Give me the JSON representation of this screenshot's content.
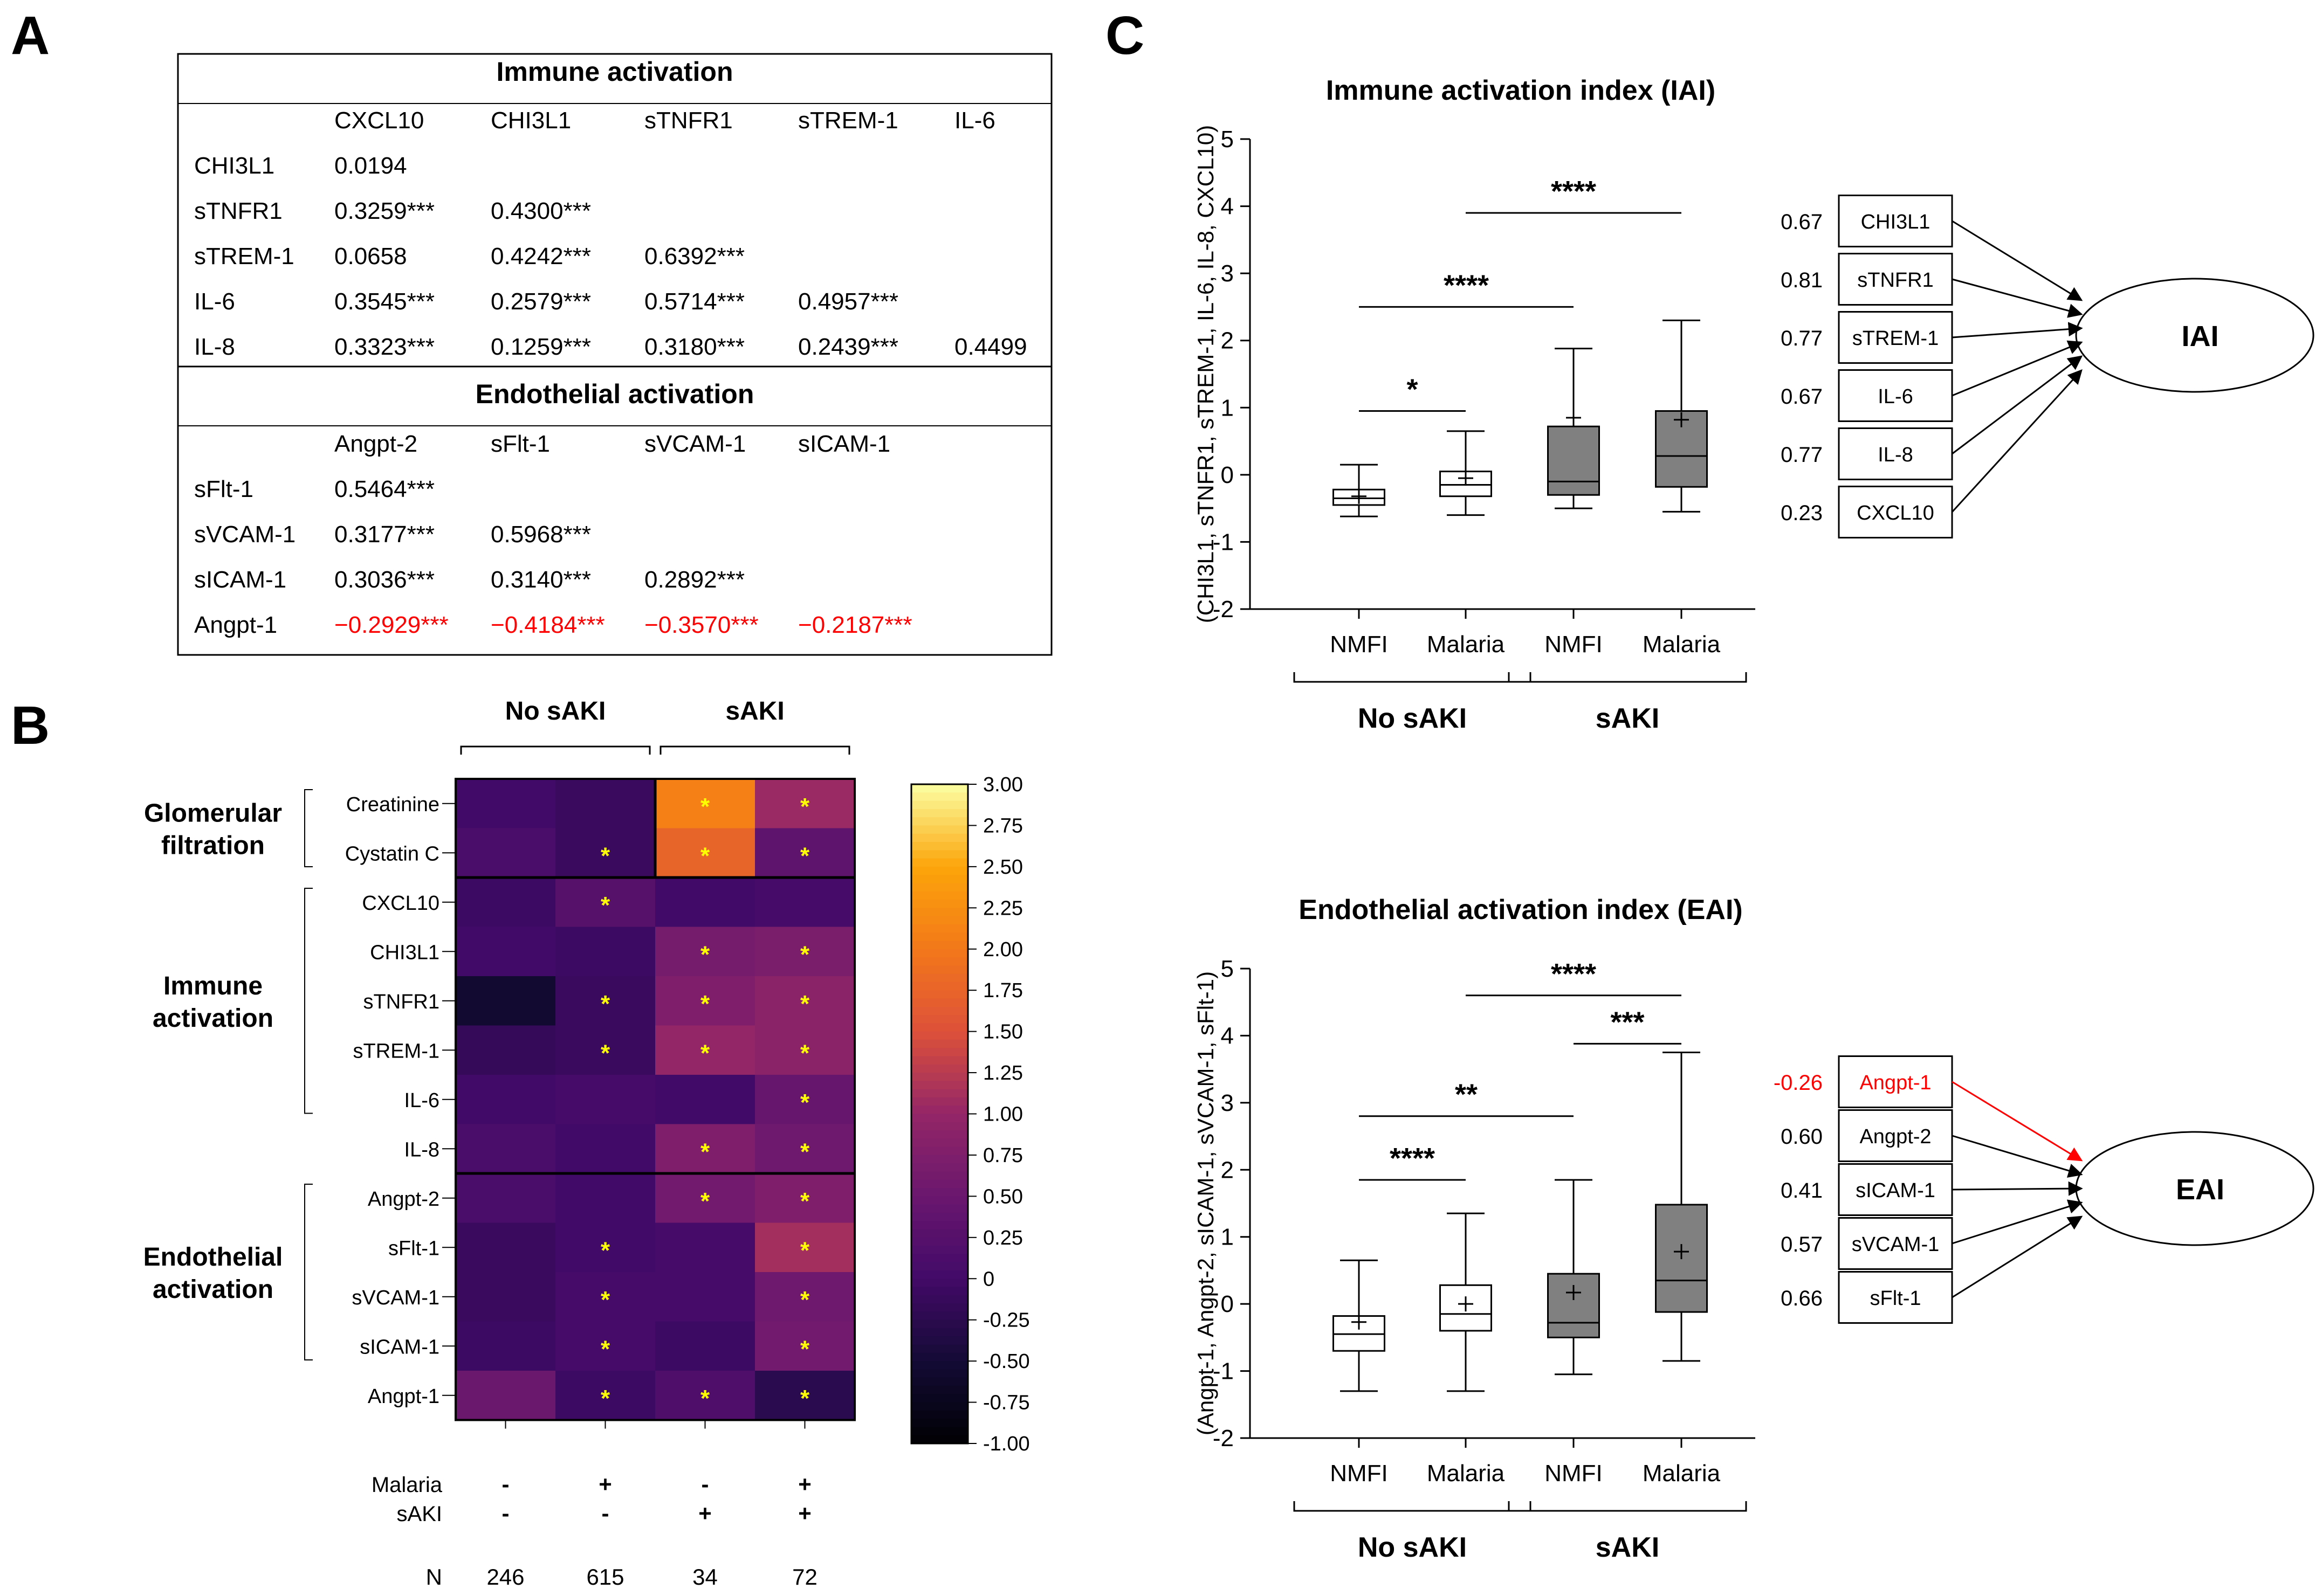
{
  "panel_labels": {
    "a": "A",
    "b": "B",
    "c": "C"
  },
  "table": {
    "immune": {
      "header": "Immune activation",
      "columns": [
        "CXCL10",
        "CHI3L1",
        "sTNFR1",
        "sTREM-1",
        "IL-6"
      ],
      "rows": [
        {
          "label": "CHI3L1",
          "cells": [
            {
              "v": "0.0194",
              "neg": false
            }
          ]
        },
        {
          "label": "sTNFR1",
          "cells": [
            {
              "v": "0.3259***",
              "neg": false
            },
            {
              "v": "0.4300***",
              "neg": false
            }
          ]
        },
        {
          "label": "sTREM-1",
          "cells": [
            {
              "v": "0.0658",
              "neg": false
            },
            {
              "v": "0.4242***",
              "neg": false
            },
            {
              "v": "0.6392***",
              "neg": false
            }
          ]
        },
        {
          "label": "IL-6",
          "cells": [
            {
              "v": "0.3545***",
              "neg": false
            },
            {
              "v": "0.2579***",
              "neg": false
            },
            {
              "v": "0.5714***",
              "neg": false
            },
            {
              "v": "0.4957***",
              "neg": false
            }
          ]
        },
        {
          "label": "IL-8",
          "cells": [
            {
              "v": "0.3323***",
              "neg": false
            },
            {
              "v": "0.1259***",
              "neg": false
            },
            {
              "v": "0.3180***",
              "neg": false
            },
            {
              "v": "0.2439***",
              "neg": false
            },
            {
              "v": "0.4499",
              "neg": false
            }
          ]
        }
      ]
    },
    "endothelial": {
      "header": "Endothelial activation",
      "columns": [
        "Angpt-2",
        "sFlt-1",
        "sVCAM-1",
        "sICAM-1"
      ],
      "rows": [
        {
          "label": "sFlt-1",
          "cells": [
            {
              "v": "0.5464***",
              "neg": false
            }
          ]
        },
        {
          "label": "sVCAM-1",
          "cells": [
            {
              "v": "0.3177***",
              "neg": false
            },
            {
              "v": "0.5968***",
              "neg": false
            }
          ]
        },
        {
          "label": "sICAM-1",
          "cells": [
            {
              "v": "0.3036***",
              "neg": false
            },
            {
              "v": "0.3140***",
              "neg": false
            },
            {
              "v": "0.2892***",
              "neg": false
            }
          ]
        },
        {
          "label": "Angpt-1",
          "cells": [
            {
              "v": "−0.2929***",
              "neg": true
            },
            {
              "v": "−0.4184***",
              "neg": true
            },
            {
              "v": "−0.3570***",
              "neg": true
            },
            {
              "v": "−0.2187***",
              "neg": true
            }
          ]
        }
      ]
    }
  },
  "heatmap": {
    "group_labels": [
      "No sAKI",
      "sAKI"
    ],
    "row_labels": [
      "Creatinine",
      "Cystatin C",
      "CXCL10",
      "CHI3L1",
      "sTNFR1",
      "sTREM-1",
      "IL-6",
      "IL-8",
      "Angpt-2",
      "sFlt-1",
      "sVCAM-1",
      "sICAM-1",
      "Angpt-1"
    ],
    "row_groups": [
      {
        "lines": [
          "Glomerular",
          "filtration"
        ],
        "start": 0,
        "end": 1
      },
      {
        "lines": [
          "Immune",
          "activation"
        ],
        "start": 2,
        "end": 6
      },
      {
        "lines": [
          "Endothelial",
          "activation"
        ],
        "start": 8,
        "end": 11
      }
    ],
    "values": [
      [
        0.0,
        -0.1,
        2.1,
        1.05
      ],
      [
        0.1,
        -0.1,
        1.75,
        0.35
      ],
      [
        -0.05,
        0.25,
        0.0,
        0.05
      ],
      [
        0.0,
        -0.05,
        0.65,
        0.7
      ],
      [
        -0.55,
        -0.1,
        0.75,
        0.9
      ],
      [
        -0.15,
        -0.1,
        1.0,
        0.9
      ],
      [
        0.0,
        0.05,
        0.0,
        0.45
      ],
      [
        0.1,
        0.0,
        0.75,
        0.55
      ],
      [
        0.1,
        0.0,
        0.6,
        0.75
      ],
      [
        -0.1,
        0.0,
        0.05,
        1.1
      ],
      [
        -0.1,
        0.05,
        0.05,
        0.55
      ],
      [
        -0.05,
        0.05,
        -0.05,
        0.6
      ],
      [
        0.5,
        -0.05,
        0.15,
        -0.25
      ]
    ],
    "stars": [
      [
        false,
        false,
        true,
        true
      ],
      [
        false,
        true,
        true,
        true
      ],
      [
        false,
        true,
        false,
        false
      ],
      [
        false,
        false,
        true,
        true
      ],
      [
        false,
        true,
        true,
        true
      ],
      [
        false,
        true,
        true,
        true
      ],
      [
        false,
        false,
        false,
        true
      ],
      [
        false,
        false,
        true,
        true
      ],
      [
        false,
        false,
        true,
        true
      ],
      [
        false,
        true,
        false,
        true
      ],
      [
        false,
        true,
        false,
        true
      ],
      [
        false,
        true,
        false,
        true
      ],
      [
        false,
        true,
        true,
        true
      ]
    ],
    "star_char": "*",
    "colorbar_ticks": [
      "3.00",
      "2.75",
      "2.50",
      "2.25",
      "2.00",
      "1.75",
      "1.50",
      "1.25",
      "1.00",
      "0.75",
      "0.50",
      "0.25",
      "0",
      "-0.25",
      "-0.50",
      "-0.75",
      "-1.00"
    ],
    "colorbar_range": [
      -1.0,
      3.0
    ],
    "condition_rows": [
      {
        "label": "Malaria",
        "values": [
          "-",
          "+",
          "-",
          "+"
        ]
      },
      {
        "label": "sAKI",
        "values": [
          "-",
          "-",
          "+",
          "+"
        ]
      }
    ],
    "n_label": "N",
    "n_values": [
      "246",
      "615",
      "34",
      "72"
    ]
  },
  "chart_data": [
    {
      "type": "box",
      "title": "Immune activation index (IAI)",
      "ylabel": "(CHI3L1, sTNFR1, sTREM-1, IL-6, IL-8,  CXCL10)",
      "ylim": [
        -2,
        5
      ],
      "yticks": [
        "-2",
        "-1",
        "0",
        "1",
        "2",
        "3",
        "4",
        "5"
      ],
      "categories": [
        "NMFI",
        "Malaria",
        "NMFI",
        "Malaria"
      ],
      "groups": [
        "No sAKI",
        "sAKI"
      ],
      "boxes": [
        {
          "min": -0.62,
          "q1": -0.45,
          "median": -0.35,
          "q3": -0.22,
          "max": 0.15,
          "mean": -0.32,
          "filled": false
        },
        {
          "min": -0.6,
          "q1": -0.32,
          "median": -0.15,
          "q3": 0.05,
          "max": 0.65,
          "mean": -0.05,
          "filled": false
        },
        {
          "min": -0.5,
          "q1": -0.3,
          "median": -0.1,
          "q3": 0.72,
          "max": 1.88,
          "mean": 0.85,
          "filled": true
        },
        {
          "min": -0.55,
          "q1": -0.18,
          "median": 0.28,
          "q3": 0.95,
          "max": 2.3,
          "mean": 0.82,
          "filled": true
        }
      ],
      "significance": [
        {
          "from": 0,
          "to": 1,
          "y": 0.95,
          "label": "*"
        },
        {
          "from": 0,
          "to": 2,
          "y": 2.5,
          "label": "****"
        },
        {
          "from": 1,
          "to": 3,
          "y": 3.9,
          "label": "****"
        }
      ],
      "loadings": [
        {
          "value": "0.67",
          "label": "CHI3L1",
          "neg": false
        },
        {
          "value": "0.81",
          "label": "sTNFR1",
          "neg": false
        },
        {
          "value": "0.77",
          "label": "sTREM-1",
          "neg": false
        },
        {
          "value": "0.67",
          "label": "IL-6",
          "neg": false
        },
        {
          "value": "0.77",
          "label": "IL-8",
          "neg": false
        },
        {
          "value": "0.23",
          "label": "CXCL10",
          "neg": false
        }
      ],
      "index_label": "IAI"
    },
    {
      "type": "box",
      "title": "Endothelial activation index (EAI)",
      "ylabel": "(Angpt-1, Angpt-2, sICAM-1, sVCAM-1, sFlt-1)",
      "ylim": [
        -2,
        5
      ],
      "yticks": [
        "-2",
        "-1",
        "0",
        "1",
        "2",
        "3",
        "4",
        "5"
      ],
      "categories": [
        "NMFI",
        "Malaria",
        "NMFI",
        "Malaria"
      ],
      "groups": [
        "No sAKI",
        "sAKI"
      ],
      "boxes": [
        {
          "min": -1.3,
          "q1": -0.7,
          "median": -0.45,
          "q3": -0.18,
          "max": 0.65,
          "mean": -0.27,
          "filled": false
        },
        {
          "min": -1.3,
          "q1": -0.4,
          "median": -0.15,
          "q3": 0.28,
          "max": 1.35,
          "mean": 0.0,
          "filled": false
        },
        {
          "min": -1.05,
          "q1": -0.5,
          "median": -0.28,
          "q3": 0.45,
          "max": 1.85,
          "mean": 0.17,
          "filled": true
        },
        {
          "min": -0.85,
          "q1": -0.12,
          "median": 0.35,
          "q3": 1.48,
          "max": 3.75,
          "mean": 0.78,
          "filled": true
        }
      ],
      "significance": [
        {
          "from": 0,
          "to": 1,
          "y": 1.85,
          "label": "****"
        },
        {
          "from": 0,
          "to": 2,
          "y": 2.8,
          "label": "**"
        },
        {
          "from": 2,
          "to": 3,
          "y": 3.88,
          "label": "***"
        },
        {
          "from": 1,
          "to": 3,
          "y": 4.6,
          "label": "****"
        }
      ],
      "loadings": [
        {
          "value": "-0.26",
          "label": "Angpt-1",
          "neg": true
        },
        {
          "value": "0.60",
          "label": "Angpt-2",
          "neg": false
        },
        {
          "value": "0.41",
          "label": "sICAM-1",
          "neg": false
        },
        {
          "value": "0.57",
          "label": "sVCAM-1",
          "neg": false
        },
        {
          "value": "0.66",
          "label": "sFlt-1",
          "neg": false
        }
      ],
      "index_label": "EAI"
    }
  ],
  "colors": {
    "negative": "#ff0000",
    "box_fill": "#808080",
    "star": "#ffff00"
  }
}
